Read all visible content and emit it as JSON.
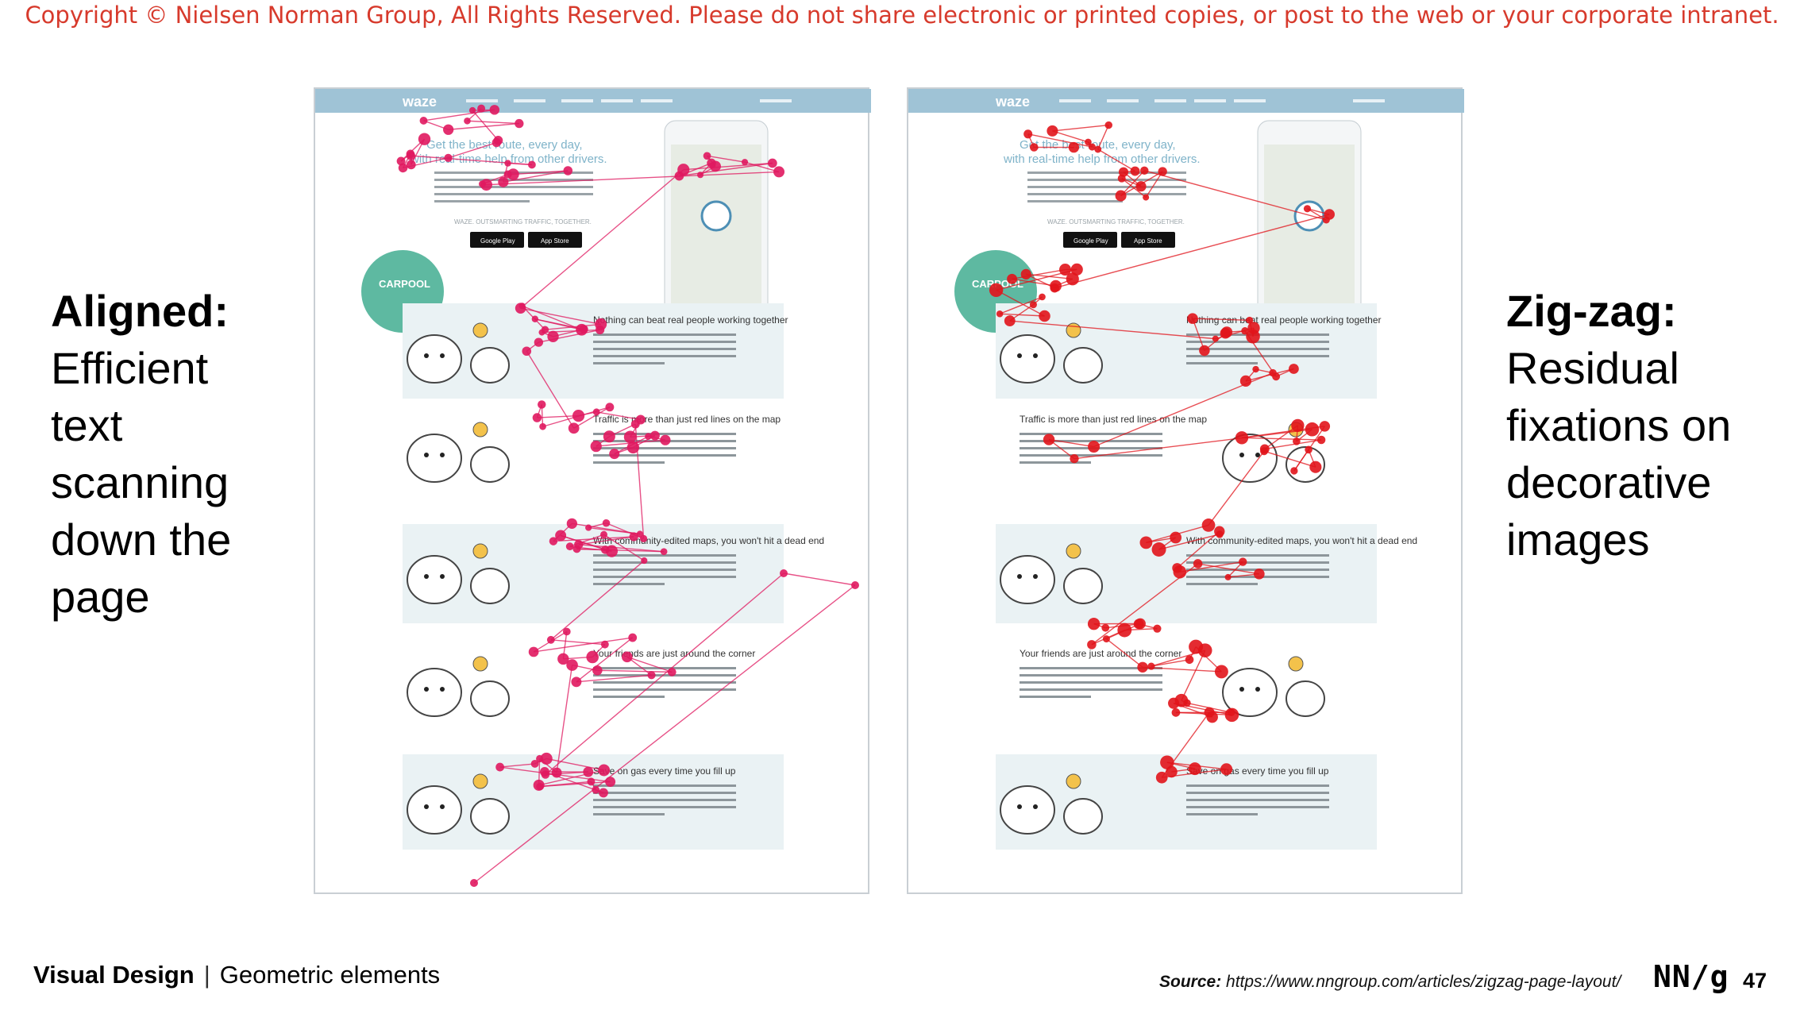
{
  "copyright": "Copyright © Nielsen Norman Group, All Rights Reserved. Please do not share electronic or printed copies, or post to the web or your corporate intranet.",
  "left_caption": {
    "heading": "Aligned:",
    "lines": [
      "Efficient",
      "text",
      "scanning",
      "down the",
      "page"
    ]
  },
  "right_caption": {
    "heading": "Zig-zag:",
    "lines": [
      "Residual",
      "fixations on",
      "decorative",
      "images"
    ]
  },
  "screenshot_text": {
    "brand": "waze",
    "hero_line1": "Get the best route, every day,",
    "hero_line2": "with real-time help from other drivers.",
    "tagline": "WAZE. OUTSMARTING TRAFFIC, TOGETHER.",
    "google_play": "Google Play",
    "app_store": "App Store",
    "carpool_badge": "CARPOOL",
    "section_headings": [
      "Nothing can beat real people working together",
      "Traffic is more than just red lines on the map",
      "With community-edited maps, you won't hit a dead end",
      "Your friends are just around the corner",
      "Save on gas every time you fill up"
    ]
  },
  "heatmap_colors": {
    "aligned_fixations": "#e0185f",
    "zigzag_fixations": "#e1141b"
  },
  "footer": {
    "course": "Visual Design",
    "separator": "|",
    "topic": "Geometric elements",
    "source_label": "Source:",
    "source_url": "https://www.nngroup.com/articles/zigzag-page-layout/",
    "logo": "NN/g",
    "page_number": "47"
  }
}
